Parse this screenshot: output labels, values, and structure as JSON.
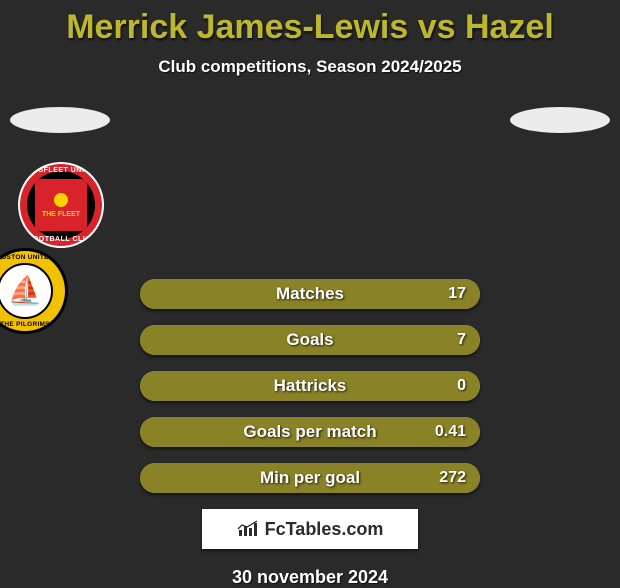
{
  "title": "Merrick James-Lewis vs Hazel",
  "subtitle": "Club competitions, Season 2024/2025",
  "date": "30 november 2024",
  "brand": "FcTables.com",
  "colors": {
    "title": "#bdb62f",
    "bar_bg": "#bbb43a",
    "bar_fill": "#8a8226",
    "page_bg": "#2a2a2a"
  },
  "club_left": {
    "name": "Ebbsfleet United",
    "ring_top": "EBBSFLEET UNITED",
    "ring_bottom": "FOOTBALL CLUB",
    "inner_text": "THE FLEET"
  },
  "club_right": {
    "name": "Boston United",
    "ring_top": "BOSTON UNITED",
    "ring_bottom": "THE PILGRIMS"
  },
  "stats": [
    {
      "label": "Matches",
      "value": "17",
      "fill_pct": 100
    },
    {
      "label": "Goals",
      "value": "7",
      "fill_pct": 100
    },
    {
      "label": "Hattricks",
      "value": "0",
      "fill_pct": 100
    },
    {
      "label": "Goals per match",
      "value": "0.41",
      "fill_pct": 100
    },
    {
      "label": "Min per goal",
      "value": "272",
      "fill_pct": 100
    }
  ]
}
